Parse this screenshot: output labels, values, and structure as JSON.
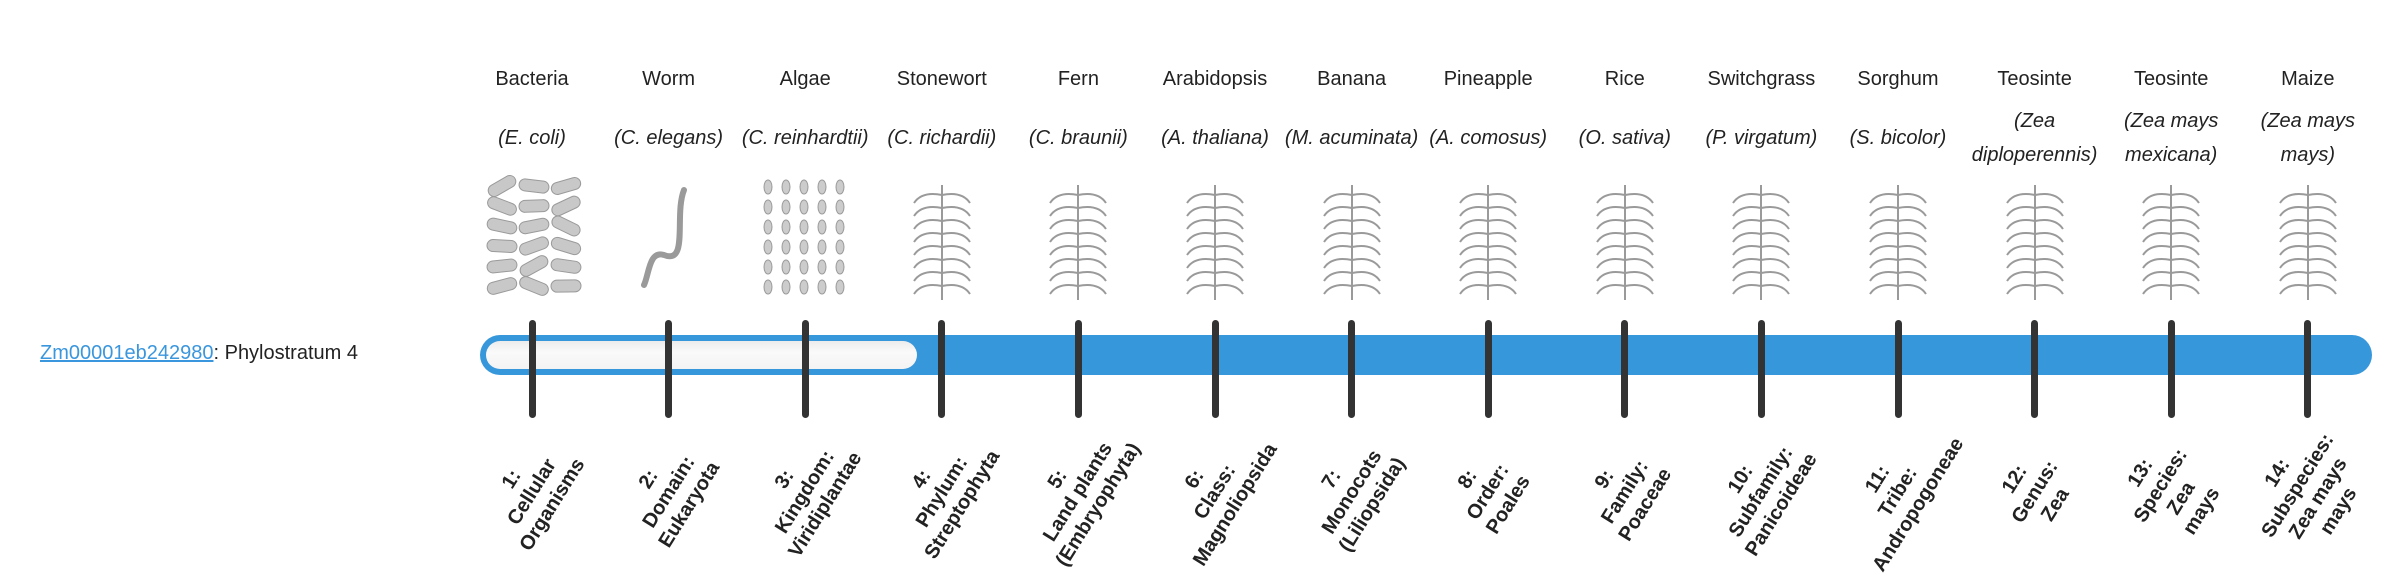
{
  "gene": {
    "id": "Zm00001eb242980",
    "suffix": ": Phylostratum 4",
    "phylostratum": 4
  },
  "colors": {
    "bar": "#3797db",
    "link": "#3a96dd",
    "tick": "#333333"
  },
  "organisms": [
    {
      "common": "Bacteria",
      "latin": "(E. coli)",
      "icon": "bacteria-icon"
    },
    {
      "common": "Worm",
      "latin": "(C. elegans)",
      "icon": "worm-icon"
    },
    {
      "common": "Algae",
      "latin": "(C. reinhardtii)",
      "icon": "algae-icon"
    },
    {
      "common": "Stonewort",
      "latin": "(C. richardii)",
      "icon": "stonewort-icon"
    },
    {
      "common": "Fern",
      "latin": "(C. braunii)",
      "icon": "fern-icon"
    },
    {
      "common": "Arabidopsis",
      "latin": "(A. thaliana)",
      "icon": "arabidopsis-icon"
    },
    {
      "common": "Banana",
      "latin": "(M. acuminata)",
      "icon": "banana-icon"
    },
    {
      "common": "Pineapple",
      "latin": "(A. comosus)",
      "icon": "pineapple-icon"
    },
    {
      "common": "Rice",
      "latin": "(O. sativa)",
      "icon": "rice-icon"
    },
    {
      "common": "Switchgrass",
      "latin": "(P. virgatum)",
      "icon": "switchgrass-icon"
    },
    {
      "common": "Sorghum",
      "latin": "(S. bicolor)",
      "icon": "sorghum-icon"
    },
    {
      "common": "Teosinte",
      "latin": "(Zea diploperennis)",
      "icon": "teosinte-icon"
    },
    {
      "common": "Teosinte",
      "latin": "(Zea mays mexicana)",
      "icon": "teosinte-icon"
    },
    {
      "common": "Maize",
      "latin": "(Zea mays mays)",
      "icon": "maize-icon"
    }
  ],
  "strata": [
    "1:\nCellular\nOrganisms",
    "2:\nDomain:\nEukaryota",
    "3:\nKingdom:\nViridiplantae",
    "4:\nPhylum:\nStreptophyta",
    "5:\nLand plants\n(Embryophyta)",
    "6:\nClass:\nMagnoliopsida",
    "7:\nMonocots\n(Liliopsida)",
    "8:\nOrder:\nPoales",
    "9:\nFamily:\nPoaceae",
    "10:\nSubfamily:\nPanicoideae",
    "11:\nTribe:\nAndropogoneae",
    "12:\nGenus:\nZea",
    "13:\nSpecies:\nZea\nmays",
    "14:\nSubspecies:\nZea mays\nmays"
  ]
}
